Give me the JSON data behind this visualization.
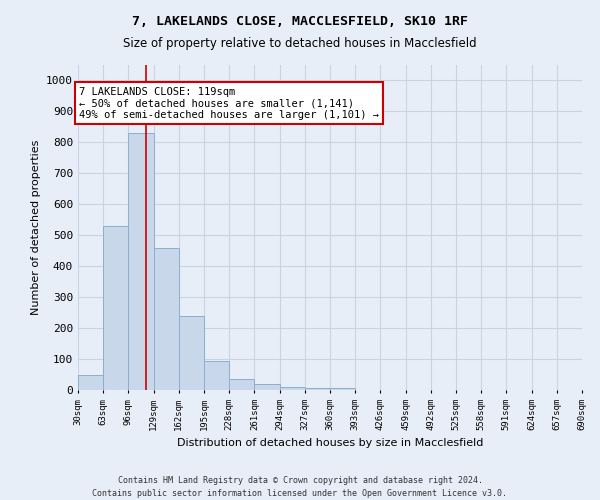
{
  "title": "7, LAKELANDS CLOSE, MACCLESFIELD, SK10 1RF",
  "subtitle": "Size of property relative to detached houses in Macclesfield",
  "xlabel": "Distribution of detached houses by size in Macclesfield",
  "ylabel": "Number of detached properties",
  "footnote1": "Contains HM Land Registry data © Crown copyright and database right 2024.",
  "footnote2": "Contains public sector information licensed under the Open Government Licence v3.0.",
  "bin_edges": [
    30,
    63,
    96,
    129,
    162,
    195,
    228,
    261,
    294,
    327,
    360,
    393,
    426,
    459,
    492,
    525,
    558,
    591,
    624,
    657,
    690
  ],
  "bar_heights": [
    50,
    530,
    830,
    460,
    240,
    95,
    35,
    20,
    10,
    5,
    8,
    0,
    0,
    0,
    0,
    0,
    0,
    0,
    0,
    0
  ],
  "bar_color": "#c8d8ea",
  "bar_edge_color": "#8ab0cc",
  "property_size": 119,
  "vline_color": "#cc0000",
  "annotation_text": "7 LAKELANDS CLOSE: 119sqm\n← 50% of detached houses are smaller (1,141)\n49% of semi-detached houses are larger (1,101) →",
  "annotation_box_color": "#ffffff",
  "annotation_box_edge": "#cc0000",
  "ylim": [
    0,
    1050
  ],
  "yticks": [
    0,
    100,
    200,
    300,
    400,
    500,
    600,
    700,
    800,
    900,
    1000
  ],
  "grid_color": "#c8d4e4",
  "background_color": "#e8eef8",
  "tick_labels": [
    "30sqm",
    "63sqm",
    "96sqm",
    "129sqm",
    "162sqm",
    "195sqm",
    "228sqm",
    "261sqm",
    "294sqm",
    "327sqm",
    "360sqm",
    "393sqm",
    "426sqm",
    "459sqm",
    "492sqm",
    "525sqm",
    "558sqm",
    "591sqm",
    "624sqm",
    "657sqm",
    "690sqm"
  ]
}
